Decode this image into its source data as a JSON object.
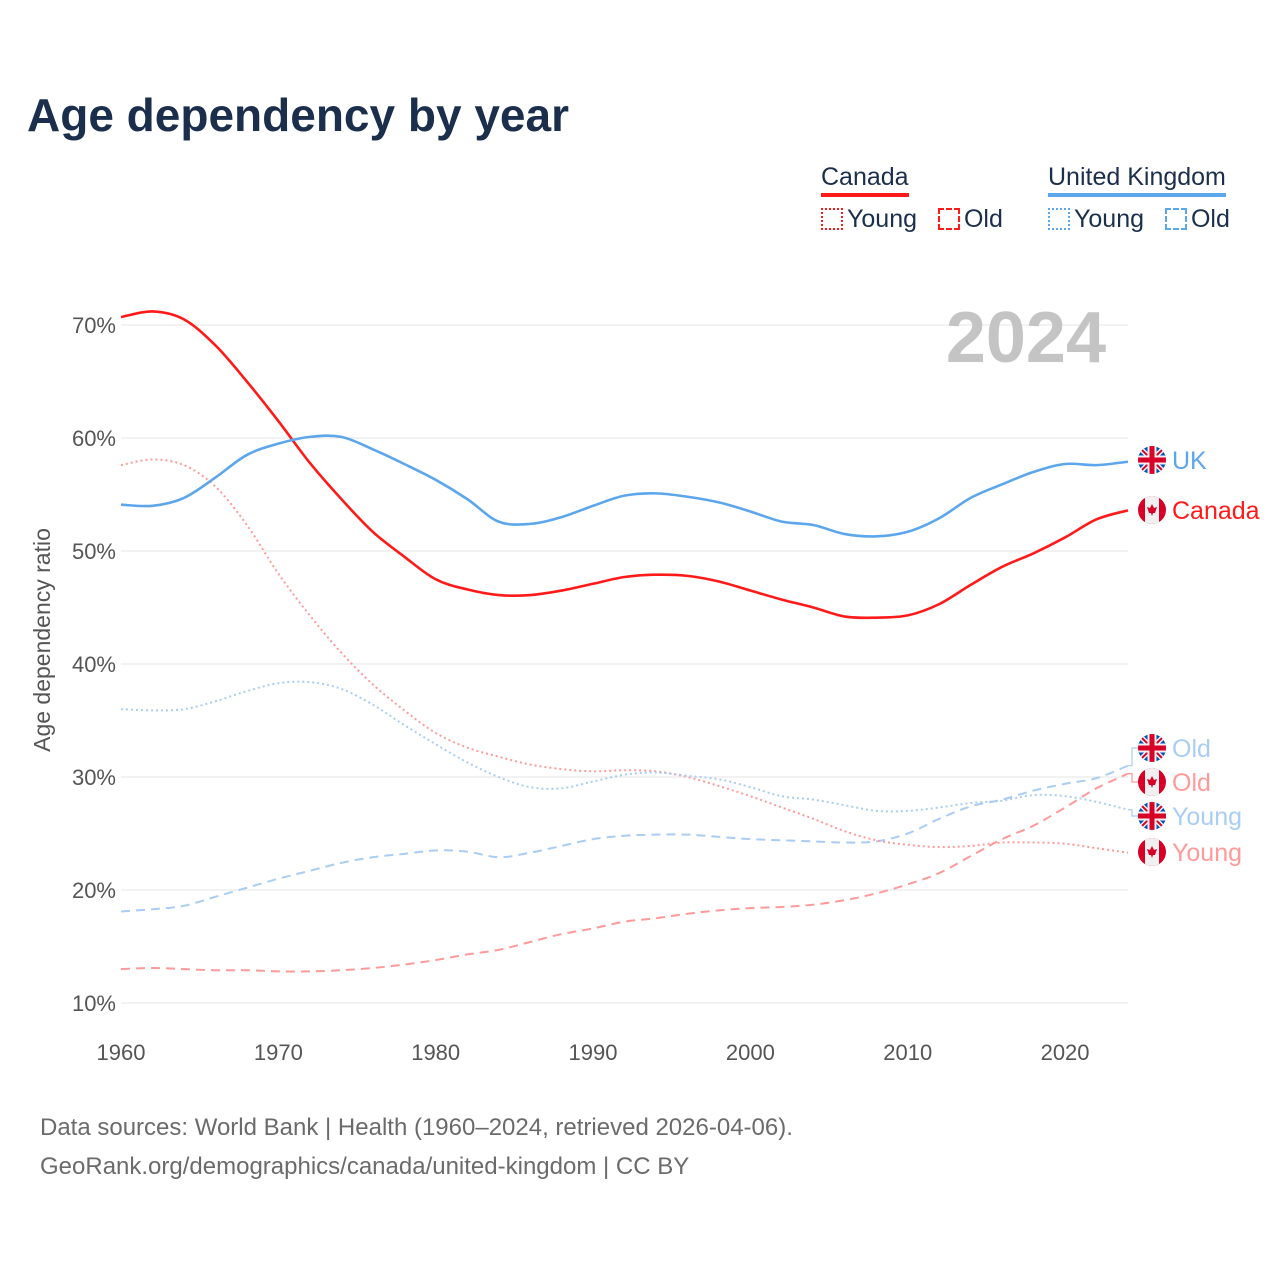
{
  "chart_data": {
    "type": "line",
    "title": "Age dependency by year",
    "ylabel": "Age dependency ratio",
    "xlabel": "",
    "xlim": [
      1960,
      2024
    ],
    "ylim": [
      10,
      70
    ],
    "xticks": [
      "1960",
      "1970",
      "1980",
      "1990",
      "2000",
      "2010",
      "2020"
    ],
    "yticks": [
      "10%",
      "20%",
      "30%",
      "40%",
      "50%",
      "60%",
      "70%"
    ],
    "grid": true,
    "year_label": "2024",
    "x": [
      1960,
      1962,
      1964,
      1966,
      1968,
      1970,
      1972,
      1974,
      1976,
      1978,
      1980,
      1982,
      1984,
      1986,
      1988,
      1990,
      1992,
      1994,
      1996,
      1998,
      2000,
      2002,
      2004,
      2006,
      2008,
      2010,
      2012,
      2014,
      2016,
      2018,
      2020,
      2022,
      2024
    ],
    "series": [
      {
        "name": "Canada",
        "label": "Canada",
        "country": "Canada",
        "kind": "total",
        "color": "#ff1a1a",
        "dash": "solid",
        "values": [
          70.7,
          71.2,
          70.5,
          68.2,
          65.0,
          61.5,
          57.8,
          54.6,
          51.7,
          49.5,
          47.5,
          46.6,
          46.1,
          46.1,
          46.5,
          47.1,
          47.7,
          47.9,
          47.8,
          47.3,
          46.5,
          45.7,
          45.0,
          44.2,
          44.1,
          44.3,
          45.3,
          47.0,
          48.6,
          49.8,
          51.2,
          52.8,
          53.6
        ]
      },
      {
        "name": "United Kingdom",
        "label": "UK",
        "country": "United Kingdom",
        "kind": "total",
        "color": "#5ca6ec",
        "dash": "solid",
        "values": [
          54.1,
          54.0,
          54.7,
          56.5,
          58.5,
          59.5,
          60.1,
          60.1,
          59.0,
          57.7,
          56.3,
          54.6,
          52.6,
          52.4,
          53.0,
          54.0,
          54.9,
          55.1,
          54.8,
          54.3,
          53.5,
          52.6,
          52.3,
          51.5,
          51.3,
          51.7,
          52.9,
          54.7,
          55.9,
          57.0,
          57.7,
          57.6,
          57.9
        ]
      },
      {
        "name": "Canada Young",
        "label": "Young",
        "country": "Canada",
        "kind": "young",
        "color": "#ff9a9a",
        "dash": "dotted",
        "values": [
          57.6,
          58.1,
          57.6,
          55.7,
          52.3,
          48.0,
          44.3,
          41.0,
          38.2,
          35.9,
          33.9,
          32.6,
          31.8,
          31.1,
          30.7,
          30.5,
          30.6,
          30.5,
          30.0,
          29.2,
          28.3,
          27.3,
          26.3,
          25.2,
          24.4,
          24.0,
          23.8,
          23.9,
          24.2,
          24.2,
          24.1,
          23.7,
          23.3
        ]
      },
      {
        "name": "United Kingdom Young",
        "label": "Young",
        "country": "United Kingdom",
        "kind": "young",
        "color": "#a9cdf3",
        "dash": "dotted",
        "values": [
          36.0,
          35.9,
          36.0,
          36.7,
          37.6,
          38.3,
          38.4,
          37.8,
          36.4,
          34.6,
          32.9,
          31.3,
          30.0,
          29.1,
          29.0,
          29.6,
          30.2,
          30.4,
          30.1,
          29.8,
          29.1,
          28.3,
          28.0,
          27.5,
          27.0,
          27.0,
          27.3,
          27.7,
          27.9,
          28.4,
          28.3,
          27.8,
          27.1
        ]
      },
      {
        "name": "Canada Old",
        "label": "Old",
        "country": "Canada",
        "kind": "old",
        "color": "#ff9a9a",
        "dash": "dashed",
        "values": [
          13.0,
          13.1,
          13.0,
          12.9,
          12.9,
          12.8,
          12.8,
          12.9,
          13.1,
          13.4,
          13.8,
          14.3,
          14.7,
          15.4,
          16.1,
          16.6,
          17.2,
          17.5,
          17.9,
          18.2,
          18.4,
          18.5,
          18.7,
          19.1,
          19.7,
          20.5,
          21.5,
          23.0,
          24.5,
          25.7,
          27.3,
          29.0,
          30.3
        ]
      },
      {
        "name": "United Kingdom Old",
        "label": "Old",
        "country": "United Kingdom",
        "kind": "old",
        "color": "#a9cdf3",
        "dash": "dashed",
        "values": [
          18.1,
          18.3,
          18.6,
          19.4,
          20.2,
          21.0,
          21.7,
          22.4,
          22.9,
          23.2,
          23.5,
          23.4,
          22.9,
          23.3,
          23.9,
          24.5,
          24.8,
          24.9,
          24.9,
          24.7,
          24.5,
          24.4,
          24.3,
          24.2,
          24.3,
          25.0,
          26.3,
          27.4,
          28.0,
          28.8,
          29.4,
          29.9,
          31.0
        ]
      }
    ]
  },
  "legend": {
    "canada": {
      "title": "Canada",
      "young": "Young",
      "old": "Old",
      "color": "#ff1a1a"
    },
    "uk": {
      "title": "United Kingdom",
      "young": "Young",
      "old": "Old",
      "color": "#5ca6ec"
    }
  },
  "source": {
    "line1": "Data sources: World Bank | Health (1960–2024, retrieved 2026-04-06).",
    "line2": "GeoRank.org/demographics/canada/united-kingdom | CC BY"
  }
}
